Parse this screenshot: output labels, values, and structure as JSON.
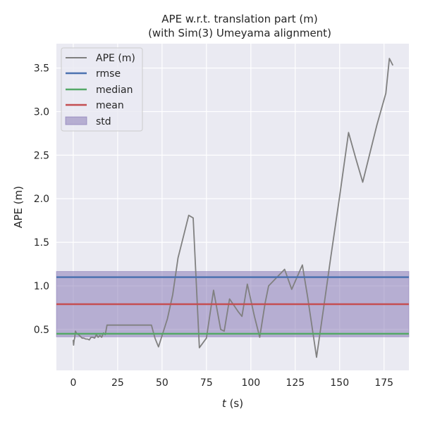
{
  "chart_data": {
    "type": "line",
    "title": "APE w.r.t. translation part (m)",
    "subtitle": "(with Sim(3) Umeyama alignment)",
    "xlabel_var": "t",
    "xlabel_unit": " (s)",
    "ylabel": "APE (m)",
    "xlim": [
      -9.5,
      189
    ],
    "ylim": [
      0.03,
      3.78
    ],
    "xticks": [
      0,
      25,
      50,
      75,
      100,
      125,
      150,
      175
    ],
    "yticks": [
      0.5,
      1.0,
      1.5,
      2.0,
      2.5,
      3.0,
      3.5
    ],
    "ytick_labels": [
      "0.5",
      "1.0",
      "1.5",
      "2.0",
      "2.5",
      "3.0",
      "3.5"
    ],
    "grid": true,
    "legend_position": "upper-left",
    "background": "#eaeaf2",
    "series": [
      {
        "name": "APE (m)",
        "color": "#808080",
        "x": [
          0,
          0.2,
          0.5,
          0.8,
          1.2,
          2,
          3,
          4,
          5,
          6,
          7,
          8,
          9,
          10,
          11,
          12,
          13,
          14,
          15,
          16,
          17,
          18,
          19,
          44,
          46,
          48,
          50,
          53,
          56,
          59,
          65,
          67.5,
          71,
          75,
          79,
          83,
          85,
          88,
          93,
          95,
          98,
          102,
          105,
          108,
          110,
          119,
          123,
          129,
          132,
          137,
          141,
          145,
          150,
          155,
          159,
          163,
          167,
          171,
          176,
          178,
          180
        ],
        "y": [
          0.38,
          0.32,
          0.38,
          0.4,
          0.48,
          0.45,
          0.44,
          0.42,
          0.4,
          0.4,
          0.39,
          0.39,
          0.38,
          0.41,
          0.41,
          0.4,
          0.44,
          0.41,
          0.43,
          0.41,
          0.46,
          0.44,
          0.55,
          0.55,
          0.4,
          0.3,
          0.43,
          0.62,
          0.9,
          1.32,
          1.81,
          1.78,
          0.29,
          0.4,
          0.95,
          0.5,
          0.48,
          0.85,
          0.7,
          0.65,
          1.02,
          0.65,
          0.41,
          0.8,
          1.0,
          1.19,
          0.96,
          1.24,
          0.87,
          0.18,
          0.75,
          1.33,
          2.03,
          2.76,
          2.47,
          2.19,
          2.52,
          2.85,
          3.21,
          3.61,
          3.53
        ]
      },
      {
        "name": "rmse",
        "color": "#4c72b0",
        "value": 1.1
      },
      {
        "name": "median",
        "color": "#55a868",
        "value": 0.45
      },
      {
        "name": "mean",
        "color": "#c44e52",
        "value": 0.79
      },
      {
        "name": "std",
        "color": "#8172b2",
        "range": [
          0.415,
          1.165
        ]
      }
    ]
  }
}
